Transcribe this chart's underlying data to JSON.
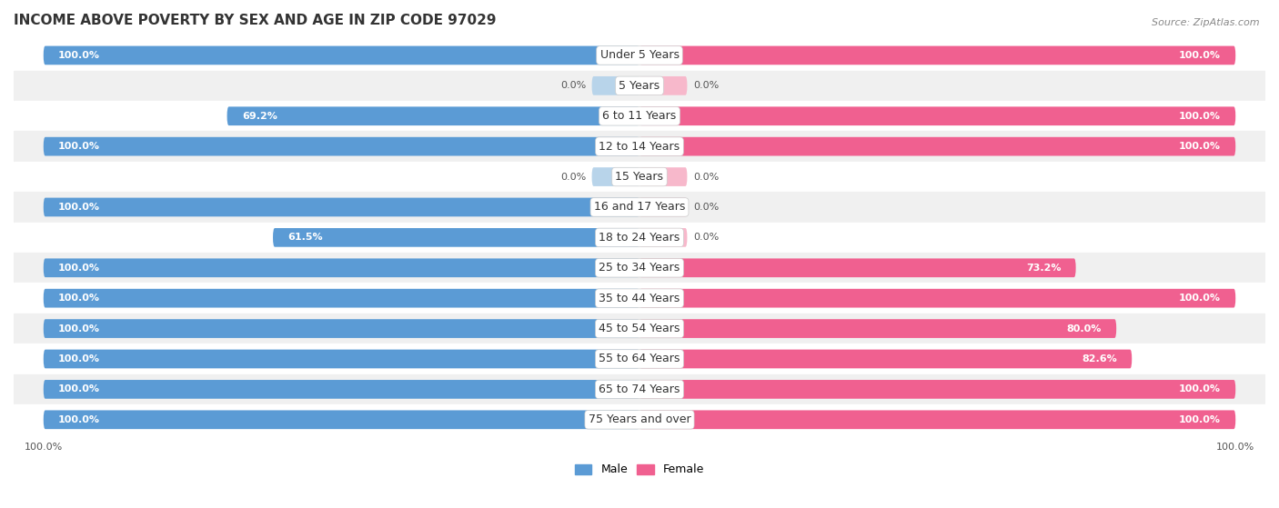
{
  "title": "INCOME ABOVE POVERTY BY SEX AND AGE IN ZIP CODE 97029",
  "source": "Source: ZipAtlas.com",
  "categories": [
    "Under 5 Years",
    "5 Years",
    "6 to 11 Years",
    "12 to 14 Years",
    "15 Years",
    "16 and 17 Years",
    "18 to 24 Years",
    "25 to 34 Years",
    "35 to 44 Years",
    "45 to 54 Years",
    "55 to 64 Years",
    "65 to 74 Years",
    "75 Years and over"
  ],
  "male_values": [
    100.0,
    0.0,
    69.2,
    100.0,
    0.0,
    100.0,
    61.5,
    100.0,
    100.0,
    100.0,
    100.0,
    100.0,
    100.0
  ],
  "female_values": [
    100.0,
    0.0,
    100.0,
    100.0,
    0.0,
    0.0,
    0.0,
    73.2,
    100.0,
    80.0,
    82.6,
    100.0,
    100.0
  ],
  "male_color": "#5b9bd5",
  "male_color_light": "#b8d4ea",
  "female_color": "#f06090",
  "female_color_light": "#f7b8cb",
  "male_label": "Male",
  "female_label": "Female",
  "bg_color": "#ffffff",
  "row_color_even": "#ffffff",
  "row_color_odd": "#f0f0f0",
  "title_fontsize": 11,
  "source_fontsize": 8,
  "label_fontsize": 8,
  "cat_fontsize": 9,
  "tick_fontsize": 8,
  "bar_height": 0.62,
  "stub_val": 8.0,
  "x_max": 100.0
}
